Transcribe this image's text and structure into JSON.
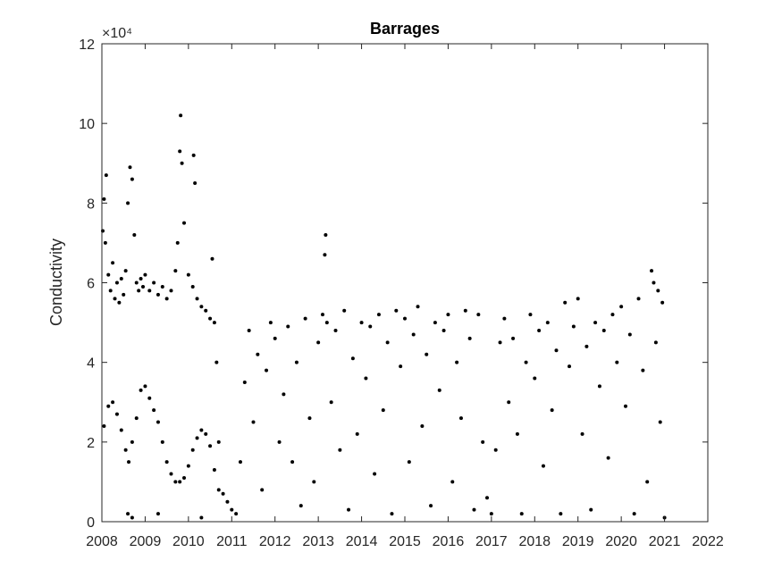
{
  "chart_data": {
    "type": "scatter",
    "title": "Barrages",
    "xlabel": "",
    "ylabel": "Conductivity",
    "exponent_label": "×10⁴",
    "xlim": [
      2008,
      2022
    ],
    "ylim": [
      0,
      12
    ],
    "xticks": [
      "2008",
      "2009",
      "2010",
      "2011",
      "2012",
      "2013",
      "2014",
      "2015",
      "2016",
      "2017",
      "2018",
      "2019",
      "2020",
      "2021",
      "2022"
    ],
    "yticks": [
      "0",
      "2",
      "4",
      "6",
      "8",
      "10",
      "12"
    ],
    "grid": false,
    "marker_color": "#000000",
    "series": [
      {
        "values_note_free": true,
        "points": [
          [
            2008.02,
            7.3
          ],
          [
            2008.05,
            8.1
          ],
          [
            2008.08,
            7.0
          ],
          [
            2008.1,
            8.7
          ],
          [
            2008.15,
            6.2
          ],
          [
            2008.2,
            5.8
          ],
          [
            2008.25,
            6.5
          ],
          [
            2008.3,
            5.6
          ],
          [
            2008.35,
            6.0
          ],
          [
            2008.4,
            5.5
          ],
          [
            2008.45,
            6.1
          ],
          [
            2008.5,
            5.7
          ],
          [
            2008.55,
            6.3
          ],
          [
            2008.6,
            8.0
          ],
          [
            2008.65,
            8.9
          ],
          [
            2008.7,
            8.6
          ],
          [
            2008.75,
            7.2
          ],
          [
            2008.8,
            6.0
          ],
          [
            2008.85,
            5.8
          ],
          [
            2008.9,
            6.1
          ],
          [
            2008.95,
            5.9
          ],
          [
            2009.0,
            6.2
          ],
          [
            2009.1,
            5.8
          ],
          [
            2009.2,
            6.0
          ],
          [
            2009.3,
            5.7
          ],
          [
            2009.4,
            5.9
          ],
          [
            2009.5,
            5.6
          ],
          [
            2009.6,
            5.8
          ],
          [
            2009.7,
            6.3
          ],
          [
            2009.75,
            7.0
          ],
          [
            2009.8,
            9.3
          ],
          [
            2009.82,
            10.2
          ],
          [
            2009.85,
            9.0
          ],
          [
            2009.9,
            7.5
          ],
          [
            2010.0,
            6.2
          ],
          [
            2010.1,
            5.9
          ],
          [
            2010.12,
            9.2
          ],
          [
            2010.15,
            8.5
          ],
          [
            2010.2,
            5.6
          ],
          [
            2010.3,
            5.4
          ],
          [
            2010.4,
            5.3
          ],
          [
            2010.5,
            5.1
          ],
          [
            2010.55,
            6.6
          ],
          [
            2010.6,
            5.0
          ],
          [
            2010.65,
            4.0
          ],
          [
            2010.7,
            2.0
          ],
          [
            2008.05,
            2.4
          ],
          [
            2008.15,
            2.9
          ],
          [
            2008.25,
            3.0
          ],
          [
            2008.35,
            2.7
          ],
          [
            2008.45,
            2.3
          ],
          [
            2008.55,
            1.8
          ],
          [
            2008.62,
            1.5
          ],
          [
            2008.7,
            2.0
          ],
          [
            2008.8,
            2.6
          ],
          [
            2008.9,
            3.3
          ],
          [
            2009.0,
            3.4
          ],
          [
            2009.1,
            3.1
          ],
          [
            2009.2,
            2.8
          ],
          [
            2009.3,
            2.5
          ],
          [
            2009.4,
            2.0
          ],
          [
            2009.5,
            1.5
          ],
          [
            2009.6,
            1.2
          ],
          [
            2009.7,
            1.0
          ],
          [
            2009.8,
            1.0
          ],
          [
            2009.9,
            1.1
          ],
          [
            2010.0,
            1.4
          ],
          [
            2010.1,
            1.8
          ],
          [
            2010.2,
            2.1
          ],
          [
            2010.3,
            2.3
          ],
          [
            2010.4,
            2.2
          ],
          [
            2010.5,
            1.9
          ],
          [
            2010.6,
            1.3
          ],
          [
            2010.7,
            0.8
          ],
          [
            2008.6,
            0.2
          ],
          [
            2008.7,
            0.1
          ],
          [
            2009.3,
            0.2
          ],
          [
            2010.3,
            0.1
          ],
          [
            2010.8,
            0.7
          ],
          [
            2010.9,
            0.5
          ],
          [
            2011.0,
            0.3
          ],
          [
            2011.1,
            0.2
          ],
          [
            2011.2,
            1.5
          ],
          [
            2011.3,
            3.5
          ],
          [
            2011.4,
            4.8
          ],
          [
            2011.5,
            2.5
          ],
          [
            2011.6,
            4.2
          ],
          [
            2011.7,
            0.8
          ],
          [
            2011.8,
            3.8
          ],
          [
            2011.9,
            5.0
          ],
          [
            2012.0,
            4.6
          ],
          [
            2012.1,
            2.0
          ],
          [
            2012.2,
            3.2
          ],
          [
            2012.3,
            4.9
          ],
          [
            2012.4,
            1.5
          ],
          [
            2012.5,
            4.0
          ],
          [
            2012.6,
            0.4
          ],
          [
            2012.7,
            5.1
          ],
          [
            2012.8,
            2.6
          ],
          [
            2012.9,
            1.0
          ],
          [
            2013.0,
            4.5
          ],
          [
            2013.1,
            5.2
          ],
          [
            2013.15,
            6.7
          ],
          [
            2013.17,
            7.2
          ],
          [
            2013.2,
            5.0
          ],
          [
            2013.3,
            3.0
          ],
          [
            2013.4,
            4.8
          ],
          [
            2013.5,
            1.8
          ],
          [
            2013.6,
            5.3
          ],
          [
            2013.7,
            0.3
          ],
          [
            2013.8,
            4.1
          ],
          [
            2013.9,
            2.2
          ],
          [
            2014.0,
            5.0
          ],
          [
            2014.1,
            3.6
          ],
          [
            2014.2,
            4.9
          ],
          [
            2014.3,
            1.2
          ],
          [
            2014.4,
            5.2
          ],
          [
            2014.5,
            2.8
          ],
          [
            2014.6,
            4.5
          ],
          [
            2014.7,
            0.2
          ],
          [
            2014.8,
            5.3
          ],
          [
            2014.9,
            3.9
          ],
          [
            2015.0,
            5.1
          ],
          [
            2015.1,
            1.5
          ],
          [
            2015.2,
            4.7
          ],
          [
            2015.3,
            5.4
          ],
          [
            2015.4,
            2.4
          ],
          [
            2015.5,
            4.2
          ],
          [
            2015.6,
            0.4
          ],
          [
            2015.7,
            5.0
          ],
          [
            2015.8,
            3.3
          ],
          [
            2015.9,
            4.8
          ],
          [
            2016.0,
            5.2
          ],
          [
            2016.1,
            1.0
          ],
          [
            2016.2,
            4.0
          ],
          [
            2016.3,
            2.6
          ],
          [
            2016.4,
            5.3
          ],
          [
            2016.5,
            4.6
          ],
          [
            2016.6,
            0.3
          ],
          [
            2016.7,
            5.2
          ],
          [
            2016.8,
            2.0
          ],
          [
            2016.9,
            0.6
          ],
          [
            2017.0,
            0.2
          ],
          [
            2017.1,
            1.8
          ],
          [
            2017.2,
            4.5
          ],
          [
            2017.3,
            5.1
          ],
          [
            2017.4,
            3.0
          ],
          [
            2017.5,
            4.6
          ],
          [
            2017.6,
            2.2
          ],
          [
            2017.7,
            0.2
          ],
          [
            2017.8,
            4.0
          ],
          [
            2017.9,
            5.2
          ],
          [
            2018.0,
            3.6
          ],
          [
            2018.1,
            4.8
          ],
          [
            2018.2,
            1.4
          ],
          [
            2018.3,
            5.0
          ],
          [
            2018.4,
            2.8
          ],
          [
            2018.5,
            4.3
          ],
          [
            2018.6,
            0.2
          ],
          [
            2018.7,
            5.5
          ],
          [
            2018.8,
            3.9
          ],
          [
            2018.9,
            4.9
          ],
          [
            2019.0,
            5.6
          ],
          [
            2019.1,
            2.2
          ],
          [
            2019.2,
            4.4
          ],
          [
            2019.3,
            0.3
          ],
          [
            2019.4,
            5.0
          ],
          [
            2019.5,
            3.4
          ],
          [
            2019.6,
            4.8
          ],
          [
            2019.7,
            1.6
          ],
          [
            2019.8,
            5.2
          ],
          [
            2019.9,
            4.0
          ],
          [
            2020.0,
            5.4
          ],
          [
            2020.1,
            2.9
          ],
          [
            2020.2,
            4.7
          ],
          [
            2020.3,
            0.2
          ],
          [
            2020.4,
            5.6
          ],
          [
            2020.5,
            3.8
          ],
          [
            2020.6,
            1.0
          ],
          [
            2020.7,
            6.3
          ],
          [
            2020.75,
            6.0
          ],
          [
            2020.8,
            4.5
          ],
          [
            2020.85,
            5.8
          ],
          [
            2020.9,
            2.5
          ],
          [
            2020.95,
            5.5
          ],
          [
            2021.0,
            0.1
          ]
        ]
      }
    ]
  }
}
